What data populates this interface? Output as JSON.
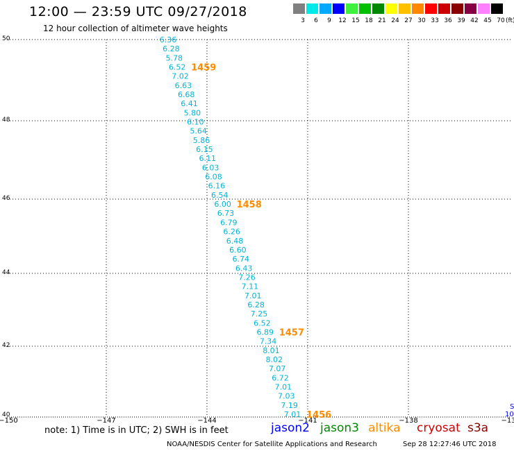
{
  "header": {
    "title": "12:00 — 23:59 UTC 09/27/2018",
    "subtitle": "12 hour collection of altimeter wave heights"
  },
  "color_scale": {
    "unit": "(ft)",
    "bins": [
      {
        "label": "3",
        "color": "#808080"
      },
      {
        "label": "6",
        "color": "#00e8e8"
      },
      {
        "label": "9",
        "color": "#00a8ff"
      },
      {
        "label": "12",
        "color": "#0000ff"
      },
      {
        "label": "15",
        "color": "#40f040"
      },
      {
        "label": "18",
        "color": "#00c000"
      },
      {
        "label": "21",
        "color": "#008800"
      },
      {
        "label": "24",
        "color": "#ffff00"
      },
      {
        "label": "27",
        "color": "#ffc000"
      },
      {
        "label": "30",
        "color": "#ff8800"
      },
      {
        "label": "33",
        "color": "#ff0000"
      },
      {
        "label": "36",
        "color": "#cc0000"
      },
      {
        "label": "39",
        "color": "#880000"
      },
      {
        "label": "42",
        "color": "#880044"
      },
      {
        "label": "45",
        "color": "#ff80ff"
      },
      {
        "label": "70",
        "color": "#000000"
      }
    ]
  },
  "axes": {
    "lat_ticks": [
      "50",
      "48",
      "46",
      "44",
      "42",
      "40"
    ],
    "lon_ticks": [
      "−150",
      "−147",
      "−144",
      "−141",
      "−138",
      "−13"
    ]
  },
  "track": {
    "color": "#00b4d8",
    "heights": [
      "6.36",
      "6.28",
      "5.78",
      "6.52",
      "7.02",
      "6.63",
      "6.68",
      "6.41",
      "5.80",
      "6.10",
      "5.64",
      "5.86",
      "6.15",
      "6.11",
      "6.03",
      "6.08",
      "6.16",
      "6.54",
      "6.00",
      "6.73",
      "6.79",
      "6.26",
      "6.48",
      "6.60",
      "6.74",
      "6.43",
      "7.26",
      "7.11",
      "7.01",
      "6.28",
      "7.25",
      "6.52",
      "6.89",
      "7.34",
      "8.01",
      "8.02",
      "7.07",
      "6.72",
      "7.01",
      "7.03",
      "7.19",
      "7.01"
    ]
  },
  "time_labels": {
    "color": "#ff8c00",
    "items": [
      {
        "text": "1459",
        "index": 3
      },
      {
        "text": "1458",
        "index": 18
      },
      {
        "text": "1457",
        "index": 32
      },
      {
        "text": "1456",
        "index": 41
      }
    ]
  },
  "edge_track": {
    "color": "#0000ff",
    "labels": [
      "S",
      "10"
    ]
  },
  "notes": {
    "text": "note: 1) Time is in UTC; 2) SWH is in feet"
  },
  "satellites": [
    {
      "name": "jason2",
      "color": "#0000ff"
    },
    {
      "name": "jason3",
      "color": "#008800"
    },
    {
      "name": "altika",
      "color": "#ff8c00"
    },
    {
      "name": "cryosat",
      "color": "#cc0000"
    },
    {
      "name": "s3a",
      "color": "#880000"
    }
  ],
  "footer": {
    "credit": "NOAA/NESDIS Center for Satellite Applications and Research",
    "timestamp": "Sep 28 12:27:46 UTC 2018"
  }
}
